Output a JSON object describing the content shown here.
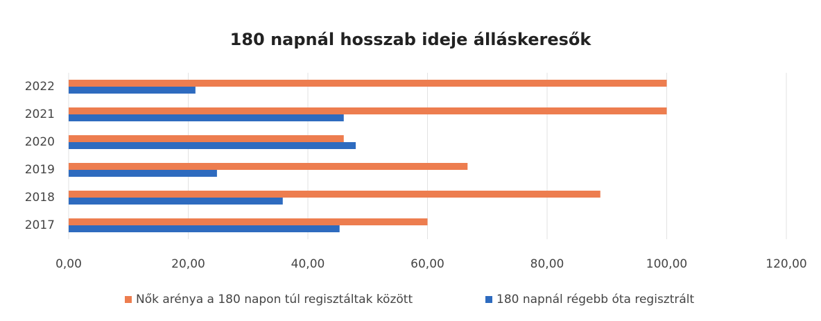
{
  "chart_data": {
    "type": "hbar",
    "title": "180 napnál hosszab ideje álláskeresők",
    "categories": [
      "2017",
      "2018",
      "2019",
      "2020",
      "2021",
      "2022"
    ],
    "series": [
      {
        "name": "Nők arénya a 180 napon túl regisztáltak között",
        "color": "#ed7d4f",
        "values": [
          60.0,
          88.9,
          66.7,
          46.0,
          100.0,
          100.0
        ]
      },
      {
        "name": "180 napnál régebb óta regisztrált",
        "color": "#2e6bbf",
        "values": [
          45.3,
          35.8,
          24.8,
          48.0,
          46.0,
          21.2
        ]
      }
    ],
    "xlim": [
      0,
      120
    ],
    "xticks": [
      {
        "value": 0,
        "label": "0,00"
      },
      {
        "value": 20,
        "label": "20,00"
      },
      {
        "value": 40,
        "label": "40,00"
      },
      {
        "value": 60,
        "label": "60,00"
      },
      {
        "value": 80,
        "label": "80,00"
      },
      {
        "value": 100,
        "label": "100,00"
      },
      {
        "value": 120,
        "label": "120,00"
      }
    ],
    "grid": true,
    "legend": "bottom"
  }
}
